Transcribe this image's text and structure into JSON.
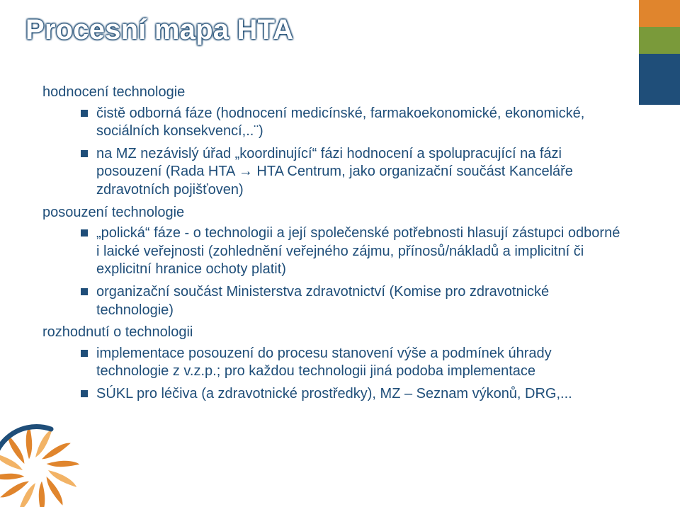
{
  "title": "Procesní mapa HTA",
  "accent": {
    "colors": [
      "#e0852d",
      "#7a9a3a",
      "#1f4e79"
    ],
    "heights": [
      38,
      38,
      72
    ]
  },
  "content": {
    "items": [
      {
        "label": "hodnocení technologie",
        "sub": [
          "čistě odborná fáze (hodnocení medicínské, farmakoekonomické, ekonomické, sociálních konsekvencí,..¨)",
          "na MZ nezávislý úřad „koordinující“ fázi hodnocení a spolupracující na fázi posouzení (Rada HTA → HTA Centrum, jako organizační součást Kanceláře zdravotních pojišťoven)"
        ]
      },
      {
        "label": "posouzení technologie",
        "sub": [
          "„polická“ fáze - o technologii a její společenské potřebnosti hlasují zástupci odborné i laické veřejnosti (zohlednění veřejného zájmu, přínosů/nákladů a implicitní či explicitní hranice ochoty platit)",
          "organizační součást Ministerstva zdravotnictví (Komise pro zdravotnické technologie)"
        ]
      },
      {
        "label": "rozhodnutí o technologii",
        "sub": [
          "implementace posouzení do procesu stanovení výše a podmínek úhrady technologie z v.z.p.; pro každou technologii jiná podoba implementace",
          "SÚKL pro léčiva (a zdravotnické prostředky), MZ – Seznam výkonů, DRG,..."
        ]
      }
    ]
  },
  "text_color": "#1f4e79",
  "title_color": "#ffffff",
  "title_fontsize": 40,
  "body_fontsize": 20,
  "logo": {
    "petal_color": "#e0852d",
    "petal_accent": "#f2b366",
    "arc_color": "#1f4e79"
  }
}
